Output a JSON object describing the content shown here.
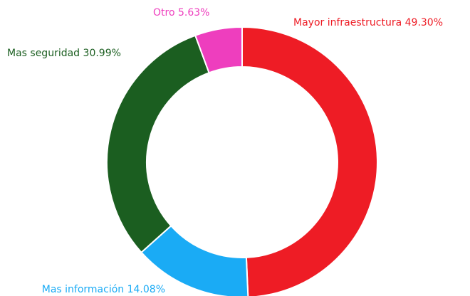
{
  "chart_data": {
    "type": "donut",
    "categories": [
      "Mayor infraestructura",
      "Mas información",
      "Mas seguridad",
      "Otro"
    ],
    "values": [
      49.3,
      14.08,
      30.99,
      5.63
    ],
    "value_labels": [
      "49.30%",
      "14.08%",
      "30.99%",
      "5.63%"
    ],
    "colors": [
      "#ee1c25",
      "#1aabf5",
      "#1b5e20",
      "#ee3ebe"
    ]
  }
}
